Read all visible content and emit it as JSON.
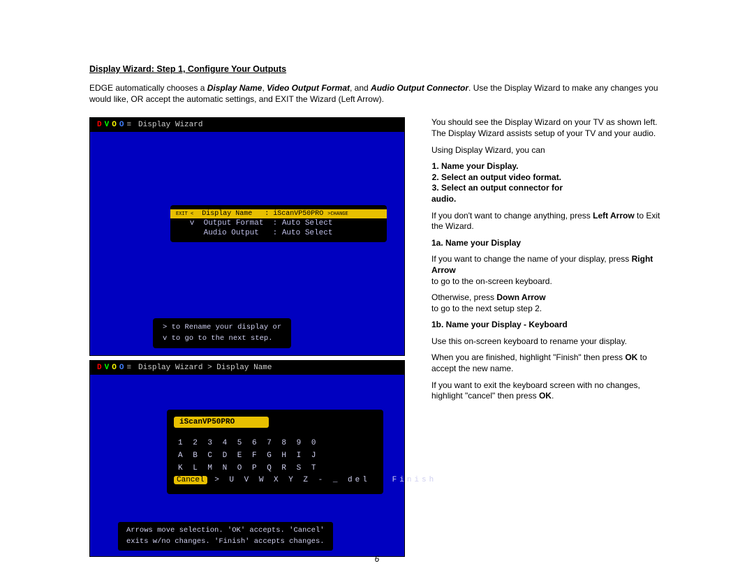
{
  "title": "Display Wizard:  Step 1, Configure Your Outputs",
  "intro_html": "EDGE automatically chooses a <b><i>Display Name</i></b>, <b><i>Video Output Format</i></b>, and <b><i>Audio Output Connector</i></b>.  Use the Display Wizard to make any changes you would like, OR accept the automatic settings, and EXIT the Wizard (Left Arrow).",
  "tv1": {
    "header": "Display Wizard",
    "row1_left": "EXIT <",
    "row1_mid": "  Display Name   :",
    "row1_val": " iScanVP50PRO ",
    "row1_right": ">CHANGE",
    "row2": "   v  Output Format  : Auto Select",
    "row3": "      Audio Output   : Auto Select",
    "hint1": "> to Rename your display or",
    "hint2": "v to go to the next step."
  },
  "tv2": {
    "header": "Display Wizard > Display Name",
    "input": "iScanVP50PRO",
    "r1": "1 2 3 4 5 6 7 8 9 0",
    "r2": "A B C D E F G H I J",
    "r3": "K L M N O P Q R S T",
    "cancel": "Cancel",
    "r4_rest": " > U V W X Y Z - _ del   Finish",
    "hint1": "Arrows move selection. 'OK' accepts. 'Cancel'",
    "hint2": "exits w/no changes. 'Finish' accepts changes."
  },
  "right": {
    "p1": "You should see the Display Wizard on your TV as shown left.  The Display Wizard assists setup of your TV and your audio.",
    "p2": "Using Display Wizard, you can",
    "li1": "Name your Display.",
    "li2": "Select an output video format.",
    "li3": "Select an output connector for",
    "li3b": "audio.",
    "p3a": "If you don't want to change anything, press ",
    "p3b": "Left Arrow",
    "p3c": " to Exit the Wizard.",
    "h1a": "1a.  Name your Display",
    "p4a": "If you want to change the name of your display, press ",
    "p4b": "Right Arrow",
    "p4c": "to go to the on-screen keyboard.",
    "p5a": "Otherwise, press ",
    "p5b": "Down  Arrow",
    "p5c": "to go to the next setup step 2.",
    "h1b": "1b.  Name your Display - Keyboard",
    "p6": "Use  this  on-screen keyboard to rename your display.",
    "p7a": "When you are finished, highlight \"Finish\"  then press ",
    "p7b": "OK",
    "p7c": " to accept the new name.",
    "p8a": "If you want to exit the keyboard screen with no changes,",
    "p8b": "highlight \"cancel\" then press ",
    "p8c": "OK",
    "p8d": "."
  },
  "page_number": "6"
}
